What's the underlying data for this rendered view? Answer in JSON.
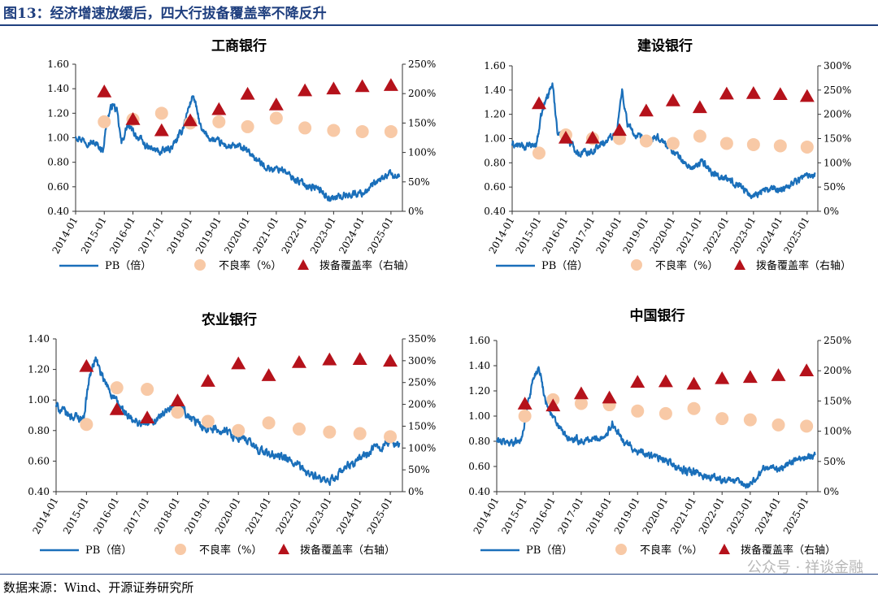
{
  "figure": {
    "title": "图13：经济增速放缓后，四大行拔备覆盖率不降反升",
    "source": "数据来源：Wind、开源证券研究所",
    "watermark": "公众号 · 祥谈金融"
  },
  "colors": {
    "pb": "#1a6fba",
    "npl": "#f8c9a6",
    "coverage": "#b5121b",
    "rule": "#1f3f7f"
  },
  "chart_data": [
    {
      "type": "line",
      "title": "工商银行",
      "x_ticks": [
        "2014-01",
        "2015-01",
        "2016-01",
        "2017-01",
        "2018-01",
        "2019-01",
        "2020-01",
        "2021-01",
        "2022-01",
        "2023-01",
        "2024-01",
        "2025-01"
      ],
      "ylim": [
        0.4,
        1.6
      ],
      "yticks": [
        0.4,
        0.6,
        0.8,
        1.0,
        1.2,
        1.4,
        1.6
      ],
      "y2lim": [
        0,
        250
      ],
      "y2ticks": [
        0,
        50,
        100,
        150,
        200,
        250
      ],
      "legend": [
        "PB（倍）",
        "不良率（%）",
        "拨备覆盖率（右轴）"
      ],
      "pb_anchors": [
        [
          2014.0,
          1.02
        ],
        [
          2014.3,
          0.98
        ],
        [
          2014.7,
          0.95
        ],
        [
          2014.95,
          0.9
        ],
        [
          2015.1,
          1.15
        ],
        [
          2015.3,
          1.28
        ],
        [
          2015.45,
          1.2
        ],
        [
          2015.6,
          0.95
        ],
        [
          2015.8,
          1.1
        ],
        [
          2016.0,
          1.05
        ],
        [
          2016.5,
          0.92
        ],
        [
          2017.0,
          0.88
        ],
        [
          2017.4,
          0.93
        ],
        [
          2017.7,
          1.05
        ],
        [
          2017.95,
          1.25
        ],
        [
          2018.1,
          1.35
        ],
        [
          2018.4,
          1.05
        ],
        [
          2018.8,
          0.98
        ],
        [
          2019.3,
          0.93
        ],
        [
          2019.8,
          0.92
        ],
        [
          2020.2,
          0.85
        ],
        [
          2020.5,
          0.78
        ],
        [
          2020.9,
          0.74
        ],
        [
          2021.2,
          0.75
        ],
        [
          2021.5,
          0.68
        ],
        [
          2022.0,
          0.62
        ],
        [
          2022.5,
          0.58
        ],
        [
          2022.9,
          0.5
        ],
        [
          2023.2,
          0.52
        ],
        [
          2023.6,
          0.54
        ],
        [
          2024.0,
          0.55
        ],
        [
          2024.5,
          0.63
        ],
        [
          2024.9,
          0.7
        ],
        [
          2025.3,
          0.68
        ]
      ],
      "npl": [
        [
          2015.0,
          1.13
        ],
        [
          2016.0,
          1.15
        ],
        [
          2017.0,
          1.2
        ],
        [
          2018.0,
          1.12
        ],
        [
          2019.0,
          1.13
        ],
        [
          2020.0,
          1.09
        ],
        [
          2021.0,
          1.16
        ],
        [
          2022.0,
          1.08
        ],
        [
          2023.0,
          1.06
        ],
        [
          2024.0,
          1.05
        ],
        [
          2025.0,
          1.05
        ]
      ],
      "coverage": [
        [
          2015.0,
          203
        ],
        [
          2016.0,
          156
        ],
        [
          2017.0,
          137
        ],
        [
          2018.0,
          154
        ],
        [
          2019.0,
          173
        ],
        [
          2020.0,
          199
        ],
        [
          2021.0,
          181
        ],
        [
          2022.0,
          205
        ],
        [
          2023.0,
          208
        ],
        [
          2024.0,
          212
        ],
        [
          2025.0,
          214
        ]
      ]
    },
    {
      "type": "line",
      "title": "建设银行",
      "x_ticks": [
        "2014-01",
        "2015-01",
        "2016-01",
        "2017-01",
        "2018-01",
        "2019-01",
        "2020-01",
        "2021-01",
        "2022-01",
        "2023-01",
        "2024-01",
        "2025-01"
      ],
      "ylim": [
        0.4,
        1.6
      ],
      "yticks": [
        0.4,
        0.6,
        0.8,
        1.0,
        1.2,
        1.4,
        1.6
      ],
      "y2lim": [
        0,
        300
      ],
      "y2ticks": [
        0,
        50,
        100,
        150,
        200,
        250,
        300
      ],
      "legend": [
        "PB（倍）",
        "不良率（%）",
        "拨备覆盖率（右轴）"
      ],
      "pb_anchors": [
        [
          2014.0,
          0.95
        ],
        [
          2014.5,
          0.93
        ],
        [
          2014.9,
          0.95
        ],
        [
          2015.1,
          1.2
        ],
        [
          2015.3,
          1.35
        ],
        [
          2015.5,
          1.45
        ],
        [
          2015.7,
          1.05
        ],
        [
          2016.0,
          1.0
        ],
        [
          2016.5,
          0.88
        ],
        [
          2017.0,
          0.9
        ],
        [
          2017.5,
          0.98
        ],
        [
          2017.9,
          1.05
        ],
        [
          2018.1,
          1.4
        ],
        [
          2018.3,
          1.12
        ],
        [
          2018.6,
          1.02
        ],
        [
          2019.0,
          0.98
        ],
        [
          2019.5,
          1.0
        ],
        [
          2020.0,
          0.9
        ],
        [
          2020.5,
          0.78
        ],
        [
          2020.8,
          0.75
        ],
        [
          2021.1,
          0.82
        ],
        [
          2021.4,
          0.73
        ],
        [
          2022.0,
          0.66
        ],
        [
          2022.5,
          0.62
        ],
        [
          2022.9,
          0.52
        ],
        [
          2023.2,
          0.56
        ],
        [
          2023.6,
          0.58
        ],
        [
          2024.0,
          0.58
        ],
        [
          2024.5,
          0.64
        ],
        [
          2024.9,
          0.69
        ],
        [
          2025.3,
          0.71
        ]
      ],
      "npl": [
        [
          2015.0,
          0.88
        ],
        [
          2016.0,
          1.03
        ],
        [
          2017.0,
          1.0
        ],
        [
          2018.0,
          1.0
        ],
        [
          2019.0,
          0.98
        ],
        [
          2020.0,
          0.96
        ],
        [
          2021.0,
          1.02
        ],
        [
          2022.0,
          0.96
        ],
        [
          2023.0,
          0.95
        ],
        [
          2024.0,
          0.94
        ],
        [
          2025.0,
          0.93
        ]
      ],
      "coverage": [
        [
          2015.0,
          222
        ],
        [
          2016.0,
          151
        ],
        [
          2017.0,
          151
        ],
        [
          2018.0,
          167
        ],
        [
          2019.0,
          207
        ],
        [
          2020.0,
          228
        ],
        [
          2021.0,
          214
        ],
        [
          2022.0,
          242
        ],
        [
          2023.0,
          243
        ],
        [
          2024.0,
          241
        ],
        [
          2025.0,
          237
        ]
      ]
    },
    {
      "type": "line",
      "title": "农业银行",
      "x_ticks": [
        "2014-01",
        "2015-01",
        "2016-01",
        "2017-01",
        "2018-01",
        "2019-01",
        "2020-01",
        "2021-01",
        "2022-01",
        "2023-01",
        "2024-01",
        "2025-01"
      ],
      "ylim": [
        0.4,
        1.4
      ],
      "yticks": [
        0.4,
        0.6,
        0.8,
        1.0,
        1.2,
        1.4
      ],
      "y2lim": [
        0,
        350
      ],
      "y2ticks": [
        0,
        50,
        100,
        150,
        200,
        250,
        300,
        350
      ],
      "legend": [
        "PB（倍）",
        "不良率（%）",
        "拨备覆盖率（右轴）"
      ],
      "pb_anchors": [
        [
          2014.0,
          0.96
        ],
        [
          2014.4,
          0.9
        ],
        [
          2014.9,
          0.88
        ],
        [
          2015.1,
          1.15
        ],
        [
          2015.3,
          1.28
        ],
        [
          2015.5,
          1.15
        ],
        [
          2015.8,
          1.05
        ],
        [
          2016.0,
          0.98
        ],
        [
          2016.5,
          0.86
        ],
        [
          2017.0,
          0.84
        ],
        [
          2017.5,
          0.9
        ],
        [
          2017.9,
          0.94
        ],
        [
          2018.1,
          0.98
        ],
        [
          2018.3,
          0.9
        ],
        [
          2018.6,
          0.85
        ],
        [
          2019.0,
          0.82
        ],
        [
          2019.5,
          0.8
        ],
        [
          2020.0,
          0.76
        ],
        [
          2020.5,
          0.7
        ],
        [
          2020.9,
          0.65
        ],
        [
          2021.5,
          0.62
        ],
        [
          2022.0,
          0.56
        ],
        [
          2022.5,
          0.5
        ],
        [
          2022.9,
          0.45
        ],
        [
          2023.2,
          0.5
        ],
        [
          2023.6,
          0.56
        ],
        [
          2024.0,
          0.62
        ],
        [
          2024.5,
          0.68
        ],
        [
          2024.9,
          0.72
        ],
        [
          2025.3,
          0.72
        ]
      ],
      "npl": [
        [
          2015.0,
          0.84
        ],
        [
          2016.0,
          1.08
        ],
        [
          2017.0,
          1.07
        ],
        [
          2018.0,
          0.92
        ],
        [
          2019.0,
          0.86
        ],
        [
          2020.0,
          0.8
        ],
        [
          2021.0,
          0.85
        ],
        [
          2022.0,
          0.81
        ],
        [
          2023.0,
          0.79
        ],
        [
          2024.0,
          0.78
        ],
        [
          2025.0,
          0.76
        ]
      ],
      "coverage": [
        [
          2015.0,
          287
        ],
        [
          2016.0,
          188
        ],
        [
          2017.0,
          169
        ],
        [
          2018.0,
          208
        ],
        [
          2019.0,
          253
        ],
        [
          2020.0,
          293
        ],
        [
          2021.0,
          266
        ],
        [
          2022.0,
          296
        ],
        [
          2023.0,
          302
        ],
        [
          2024.0,
          303
        ],
        [
          2025.0,
          299
        ]
      ]
    },
    {
      "type": "line",
      "title": "中国银行",
      "x_ticks": [
        "2014-01",
        "2015-01",
        "2016-01",
        "2017-01",
        "2018-01",
        "2019-01",
        "2020-01",
        "2021-01",
        "2022-01",
        "2023-01",
        "2024-01",
        "2025-01"
      ],
      "ylim": [
        0.4,
        1.6
      ],
      "yticks": [
        0.4,
        0.6,
        0.8,
        1.0,
        1.2,
        1.4,
        1.6
      ],
      "y2lim": [
        0,
        250
      ],
      "y2ticks": [
        0,
        50,
        100,
        150,
        200,
        250
      ],
      "legend": [
        "PB（倍）",
        "不良率（%）",
        "拨备覆盖率（右轴）"
      ],
      "pb_anchors": [
        [
          2014.0,
          0.8
        ],
        [
          2014.5,
          0.79
        ],
        [
          2014.9,
          0.82
        ],
        [
          2015.1,
          1.1
        ],
        [
          2015.3,
          1.3
        ],
        [
          2015.5,
          1.4
        ],
        [
          2015.7,
          1.15
        ],
        [
          2016.0,
          0.98
        ],
        [
          2016.5,
          0.82
        ],
        [
          2017.0,
          0.8
        ],
        [
          2017.5,
          0.82
        ],
        [
          2017.9,
          0.85
        ],
        [
          2018.1,
          0.95
        ],
        [
          2018.4,
          0.82
        ],
        [
          2018.8,
          0.75
        ],
        [
          2019.2,
          0.7
        ],
        [
          2019.7,
          0.67
        ],
        [
          2020.2,
          0.62
        ],
        [
          2020.6,
          0.57
        ],
        [
          2021.0,
          0.55
        ],
        [
          2021.5,
          0.52
        ],
        [
          2022.0,
          0.5
        ],
        [
          2022.5,
          0.48
        ],
        [
          2022.9,
          0.45
        ],
        [
          2023.2,
          0.5
        ],
        [
          2023.5,
          0.6
        ],
        [
          2024.0,
          0.58
        ],
        [
          2024.5,
          0.64
        ],
        [
          2024.9,
          0.68
        ],
        [
          2025.3,
          0.69
        ]
      ],
      "npl": [
        [
          2015.0,
          1.0
        ],
        [
          2016.0,
          1.13
        ],
        [
          2017.0,
          1.1
        ],
        [
          2018.0,
          1.09
        ],
        [
          2019.0,
          1.04
        ],
        [
          2020.0,
          1.02
        ],
        [
          2021.0,
          1.06
        ],
        [
          2022.0,
          0.98
        ],
        [
          2023.0,
          0.97
        ],
        [
          2024.0,
          0.93
        ],
        [
          2025.0,
          0.92
        ]
      ],
      "coverage": [
        [
          2015.0,
          145
        ],
        [
          2016.0,
          142
        ],
        [
          2017.0,
          162
        ],
        [
          2018.0,
          155
        ],
        [
          2019.0,
          181
        ],
        [
          2020.0,
          182
        ],
        [
          2021.0,
          178
        ],
        [
          2022.0,
          187
        ],
        [
          2023.0,
          189
        ],
        [
          2024.0,
          192
        ],
        [
          2025.0,
          200
        ]
      ]
    }
  ]
}
